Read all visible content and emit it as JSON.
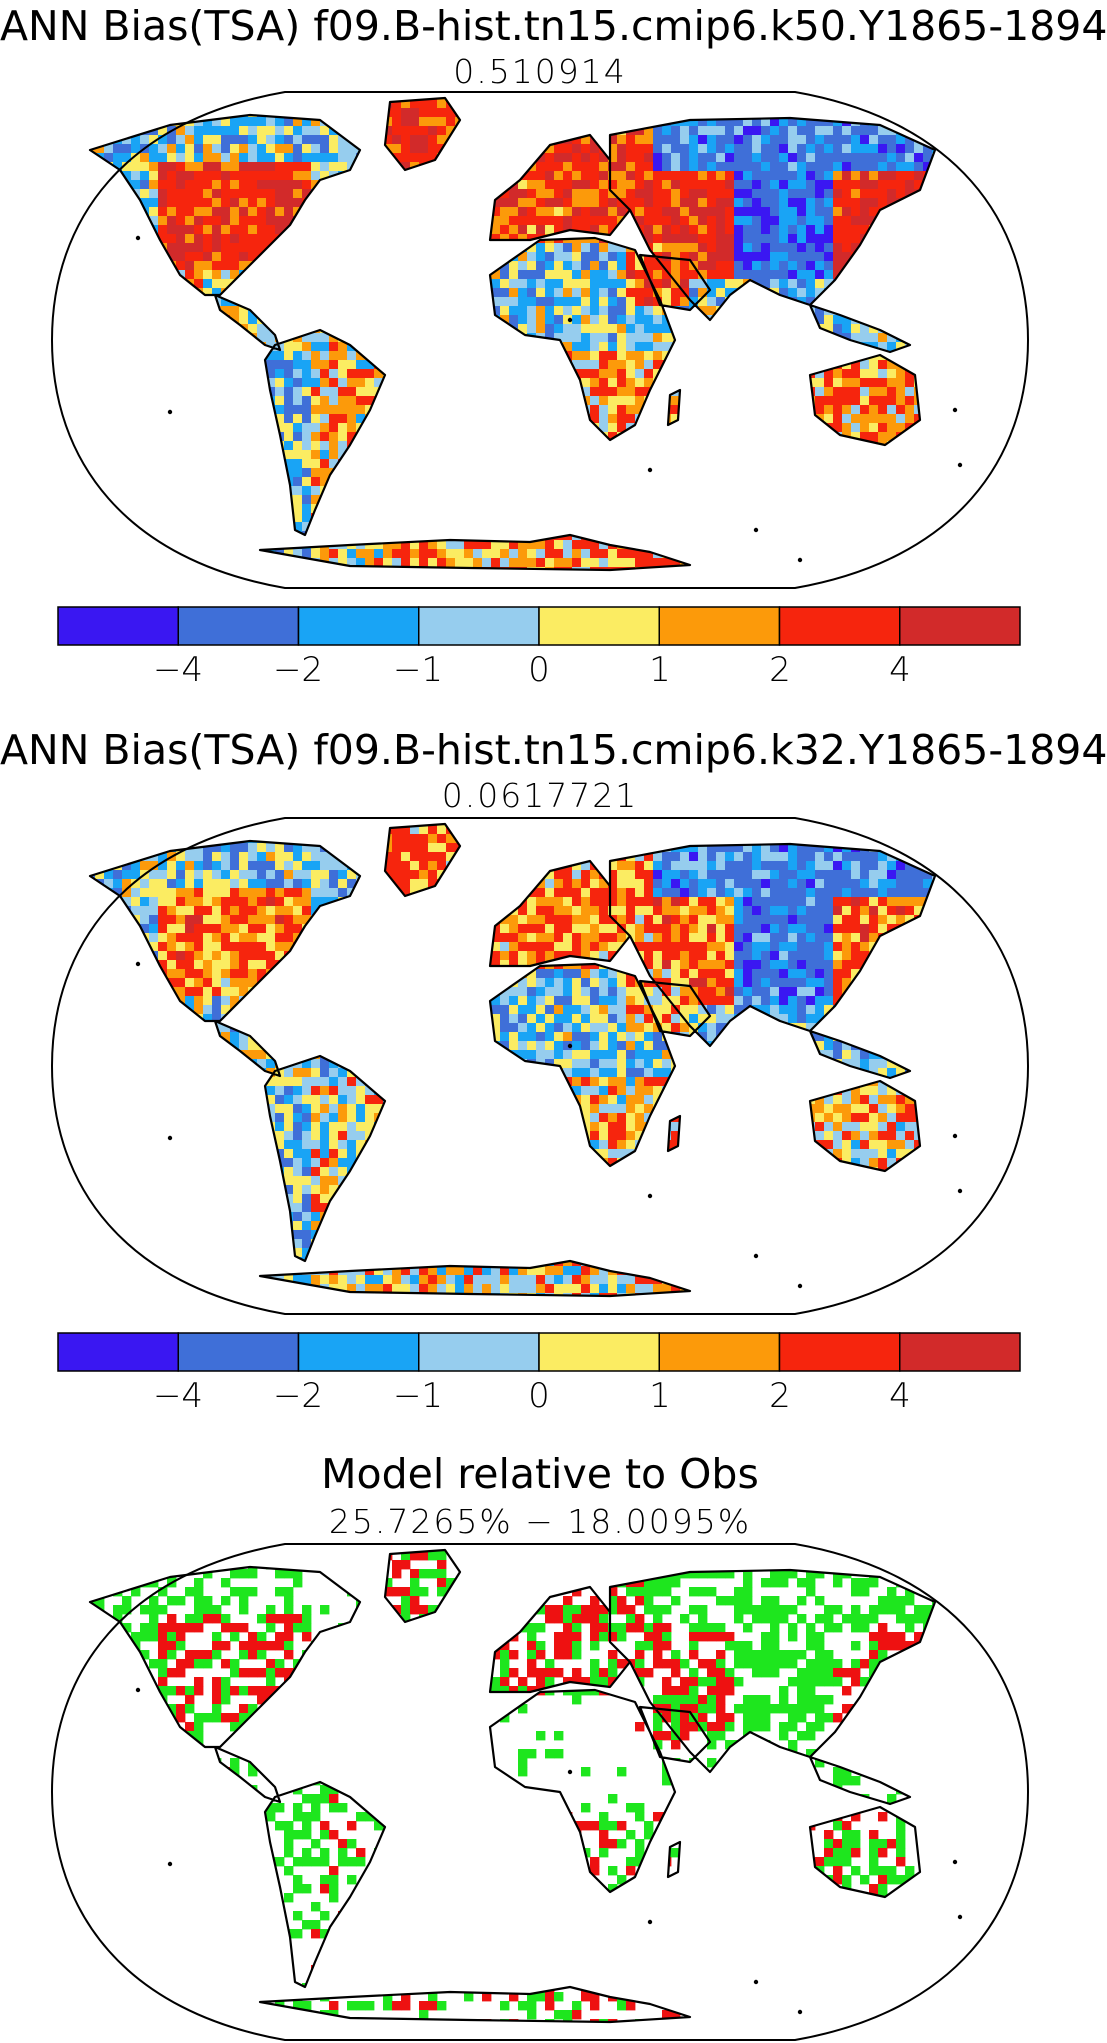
{
  "panels": [
    {
      "title": "ANN Bias(TSA) f09.B-hist.tn15.cmip6.k50.Y1865-1894",
      "subtitle": "0.510914"
    },
    {
      "title": "ANN Bias(TSA) f09.B-hist.tn15.cmip6.k32.Y1865-1894",
      "subtitle": "0.0617721"
    },
    {
      "title": "Model relative to Obs",
      "subtitle": "25.7265% − 18.0095%"
    }
  ],
  "colorbar": {
    "colors": [
      "#3a17f2",
      "#3f6fd8",
      "#19a4f5",
      "#96cdee",
      "#fbec62",
      "#fc9a0a",
      "#f6250d",
      "#d22a2a"
    ],
    "tick_labels": [
      "−4",
      "−2",
      "−1",
      "0",
      "1",
      "2",
      "4"
    ]
  },
  "comparison_colors": {
    "better": "#1ee61e",
    "worse": "#ee1111"
  }
}
